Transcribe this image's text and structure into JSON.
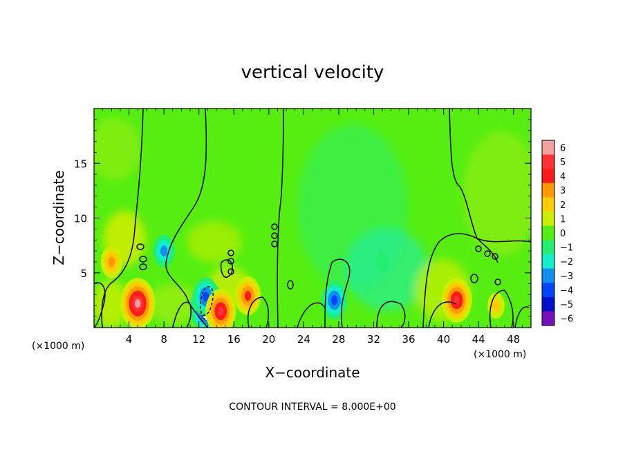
{
  "chart_data": {
    "type": "heatmap",
    "title": "vertical velocity",
    "xlabel": "X−coordinate",
    "ylabel": "Z−coordinate",
    "x_unit_label": "(×1000 m)",
    "z_unit_label": "(×1000 m)",
    "xlim": [
      0,
      50
    ],
    "ylim": [
      0,
      20
    ],
    "x_ticks": [
      4,
      8,
      12,
      16,
      20,
      24,
      28,
      32,
      36,
      40,
      44,
      48
    ],
    "y_ticks": [
      5,
      10,
      15
    ],
    "colorbar": {
      "levels": [
        6,
        5,
        4,
        3,
        2,
        1,
        0,
        -1,
        -2,
        -3,
        -4,
        -5,
        -6
      ],
      "labels": [
        "6",
        "5",
        "4",
        "3",
        "2",
        "1",
        "0",
        "−1",
        "−2",
        "−3",
        "−4",
        "−5",
        "−6"
      ],
      "colors": [
        "#f4a0a0",
        "#ff3030",
        "#ff1a1a",
        "#ff9900",
        "#ffcc00",
        "#ccee00",
        "#55ee10",
        "#22ee70",
        "#10eecc",
        "#1090ee",
        "#0044ff",
        "#0010cc",
        "#7710bb"
      ]
    },
    "background_value": 0,
    "features": [
      {
        "x": 5.0,
        "z": 2.2,
        "value": 5.5
      },
      {
        "x": 13.0,
        "z": 1.8,
        "value": -6
      },
      {
        "x": 12.8,
        "z": 2.8,
        "value": -4
      },
      {
        "x": 14.5,
        "z": 1.5,
        "value": 5
      },
      {
        "x": 17.6,
        "z": 2.9,
        "value": 4
      },
      {
        "x": 8.0,
        "z": 7.0,
        "value": -2.5
      },
      {
        "x": 2.0,
        "z": 6.0,
        "value": 2.5
      },
      {
        "x": 27.5,
        "z": 2.5,
        "value": -4
      },
      {
        "x": 41.5,
        "z": 2.5,
        "value": 4.5
      },
      {
        "x": 33.0,
        "z": 6.0,
        "value": -1
      },
      {
        "x": 46.0,
        "z": 2.0,
        "value": 2
      }
    ],
    "contour_interval_label": "CONTOUR INTERVAL = 8.000E+00"
  }
}
